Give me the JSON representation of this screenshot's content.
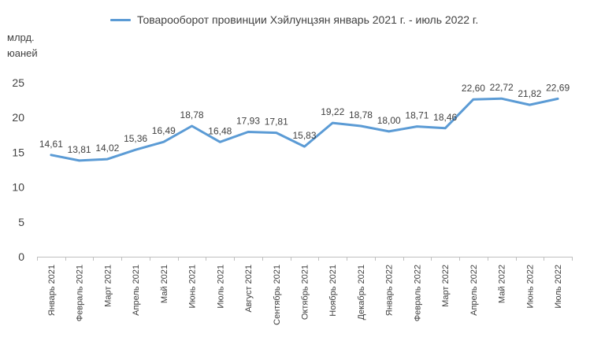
{
  "chart_data": {
    "type": "line",
    "title": "",
    "legend": {
      "placement": "top-center",
      "entries": [
        "Товарооборот провинции Хэйлунцзян январь 2021 г. - июль 2022 г."
      ]
    },
    "ylabel_lines": [
      "млрд.",
      "юаней"
    ],
    "xlabel": "",
    "ylim": [
      0,
      25
    ],
    "yticks": [
      "0",
      "5",
      "10",
      "15",
      "20",
      "25"
    ],
    "ytick_values": [
      0,
      5,
      10,
      15,
      20,
      25
    ],
    "grid": false,
    "categories": [
      "Январь 2021",
      "Февраль 2021",
      "Март 2021",
      "Апрель 2021",
      "Май 2021",
      "Июнь 2021",
      "Июль 2021",
      "Август 2021",
      "Сентябрь 2021",
      "Октябрь 2021",
      "Ноябрь 2021",
      "Декабрь 2021",
      "Январь 2022",
      "Февраль 2022",
      "Март 2022",
      "Апрель 2022",
      "Май 2022",
      "Июнь 2022",
      "Июль 2022"
    ],
    "series": [
      {
        "name": "Товарооборот провинции Хэйлунцзян январь 2021 г. - июль 2022 г.",
        "color": "#5B9BD5",
        "values": [
          14.61,
          13.81,
          14.02,
          15.36,
          16.49,
          18.78,
          16.48,
          17.93,
          17.81,
          15.83,
          19.22,
          18.78,
          18.0,
          18.71,
          18.46,
          22.6,
          22.72,
          21.82,
          22.69
        ],
        "labels": [
          "14,61",
          "13,81",
          "14,02",
          "15,36",
          "16,49",
          "18,78",
          "16,48",
          "17,93",
          "17,81",
          "15,83",
          "19,22",
          "18,78",
          "18,00",
          "18,71",
          "18,46",
          "22,60",
          "22,72",
          "21,82",
          "22,69"
        ]
      }
    ]
  },
  "colors": {
    "axis": "#BFBFBF",
    "text": "#404040",
    "series": "#5B9BD5"
  }
}
